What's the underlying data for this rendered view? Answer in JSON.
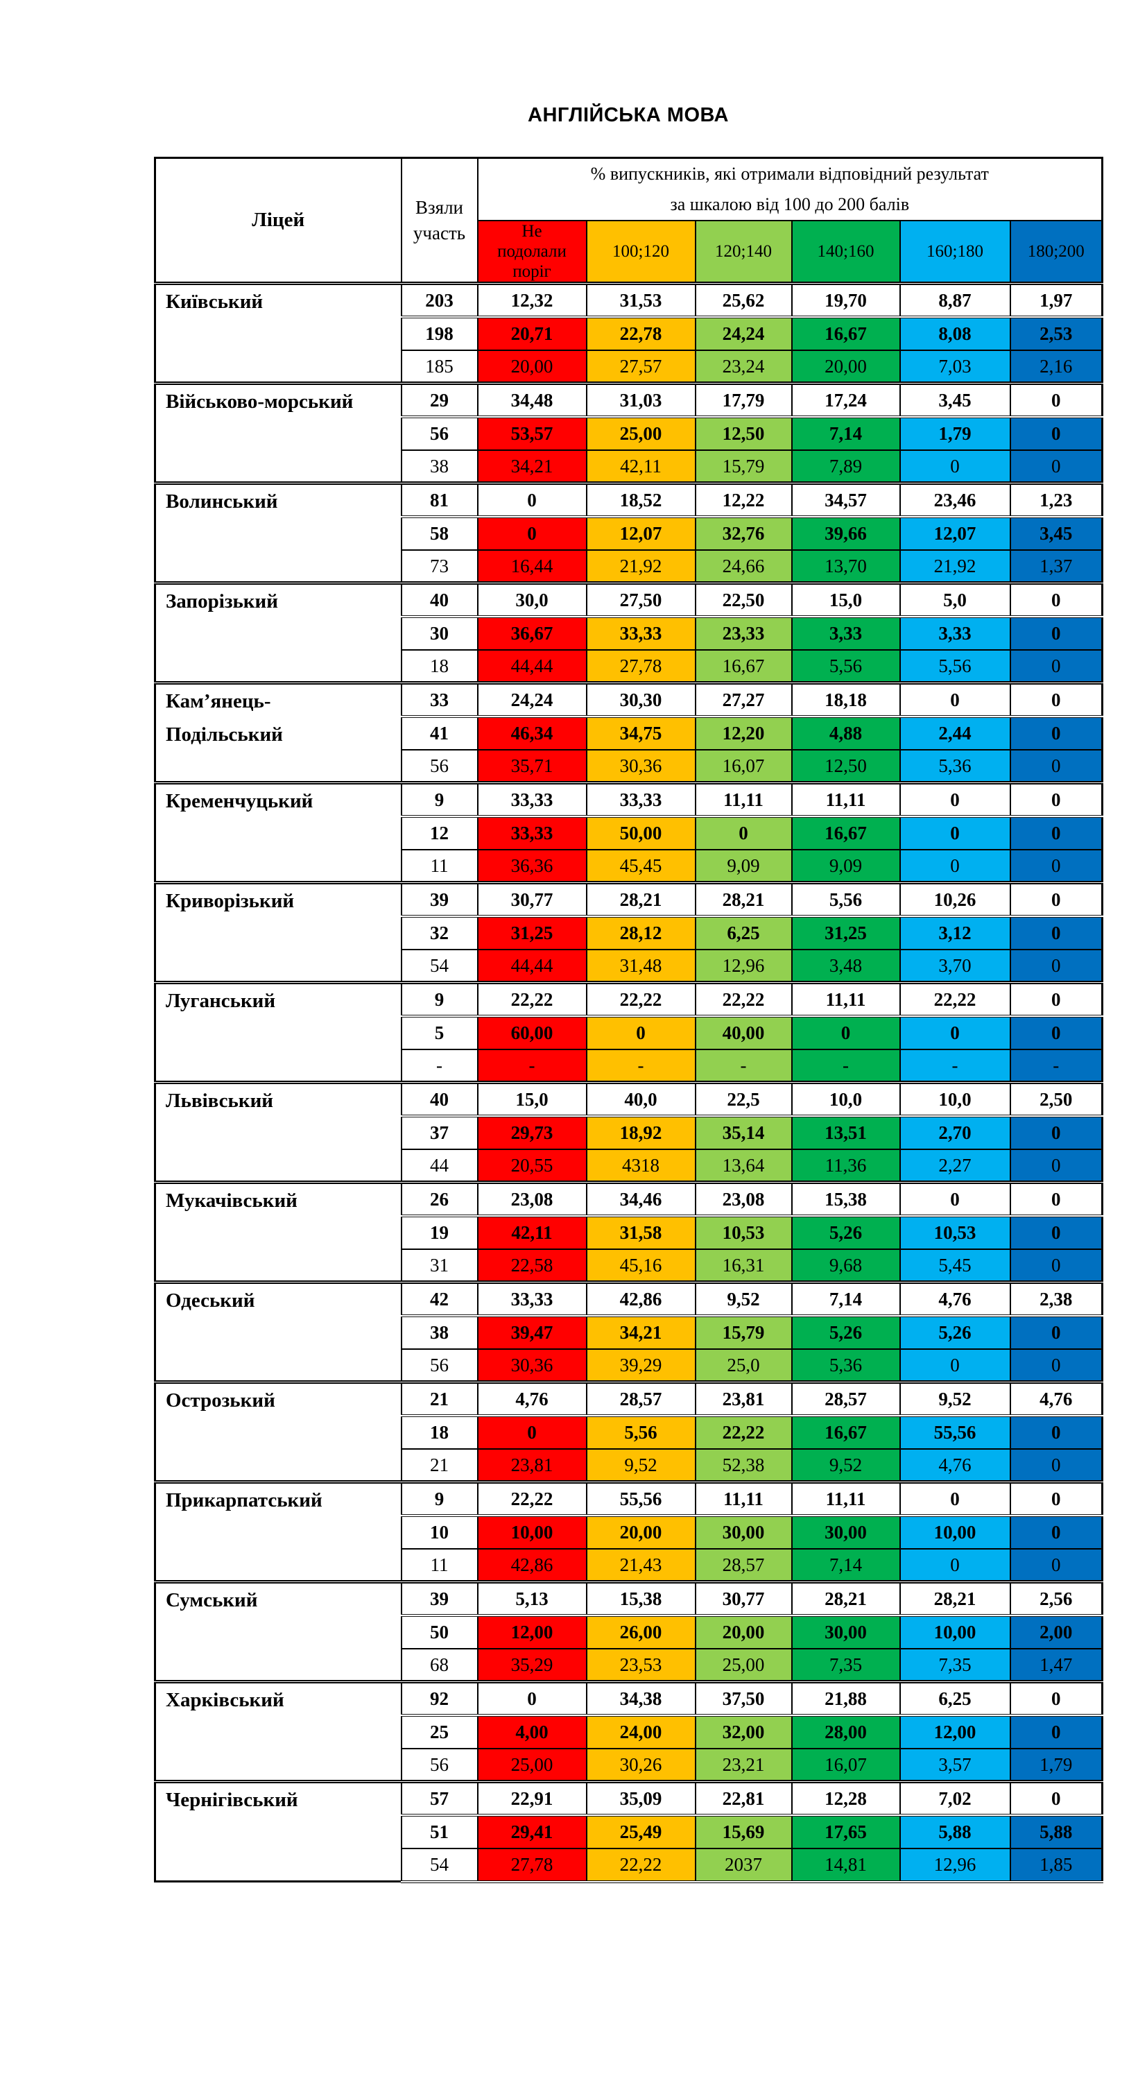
{
  "title": "АНГЛІЙСЬКА МОВА",
  "table": {
    "lyceum_header": "Ліцей",
    "participants_header": "Взяли\nучасть",
    "scale_header": "% випускників, які отримали відповідний результат\nза шкалою від 100 до 200 балів",
    "score_columns": [
      {
        "label": "Не\nподолали\nпоріг",
        "color": "#FF0000"
      },
      {
        "label": "100;120",
        "color": "#FFC000"
      },
      {
        "label": "120;140",
        "color": "#92D050"
      },
      {
        "label": "140;160",
        "color": "#00B050"
      },
      {
        "label": "160;180",
        "color": "#00B0F0"
      },
      {
        "label": "180;200",
        "color": "#0070C0"
      }
    ],
    "blocks": [
      {
        "lyceum": "Київський",
        "rows": [
          {
            "participants": "203",
            "values": [
              "12,32",
              "31,53",
              "25,62",
              "19,70",
              "8,87",
              "1,97"
            ]
          },
          {
            "participants": "198",
            "values": [
              "20,71",
              "22,78",
              "24,24",
              "16,67",
              "8,08",
              "2,53"
            ]
          },
          {
            "participants": "185",
            "values": [
              "20,00",
              "27,57",
              "23,24",
              "20,00",
              "7,03",
              "2,16"
            ]
          }
        ]
      },
      {
        "lyceum": "Військово-морський",
        "rows": [
          {
            "participants": "29",
            "values": [
              "34,48",
              "31,03",
              "17,79",
              "17,24",
              "3,45",
              "0"
            ]
          },
          {
            "participants": "56",
            "values": [
              "53,57",
              "25,00",
              "12,50",
              "7,14",
              "1,79",
              "0"
            ]
          },
          {
            "participants": "38",
            "values": [
              "34,21",
              "42,11",
              "15,79",
              "7,89",
              "0",
              "0"
            ]
          }
        ]
      },
      {
        "lyceum": "Волинський",
        "rows": [
          {
            "participants": "81",
            "values": [
              "0",
              "18,52",
              "12,22",
              "34,57",
              "23,46",
              "1,23"
            ]
          },
          {
            "participants": "58",
            "values": [
              "0",
              "12,07",
              "32,76",
              "39,66",
              "12,07",
              "3,45"
            ]
          },
          {
            "participants": "73",
            "values": [
              "16,44",
              "21,92",
              "24,66",
              "13,70",
              "21,92",
              "1,37"
            ]
          }
        ]
      },
      {
        "lyceum": "Запорізький",
        "rows": [
          {
            "participants": "40",
            "values": [
              "30,0",
              "27,50",
              "22,50",
              "15,0",
              "5,0",
              "0"
            ]
          },
          {
            "participants": "30",
            "values": [
              "36,67",
              "33,33",
              "23,33",
              "3,33",
              "3,33",
              "0"
            ]
          },
          {
            "participants": "18",
            "values": [
              "44,44",
              "27,78",
              "16,67",
              "5,56",
              "5,56",
              "0"
            ]
          }
        ]
      },
      {
        "lyceum": "Кам’янець-\nПодільський",
        "rows": [
          {
            "participants": "33",
            "values": [
              "24,24",
              "30,30",
              "27,27",
              "18,18",
              "0",
              "0"
            ]
          },
          {
            "participants": "41",
            "values": [
              "46,34",
              "34,75",
              "12,20",
              "4,88",
              "2,44",
              "0"
            ]
          },
          {
            "participants": "56",
            "values": [
              "35,71",
              "30,36",
              "16,07",
              "12,50",
              "5,36",
              "0"
            ]
          }
        ]
      },
      {
        "lyceum": "Кременчуцький",
        "rows": [
          {
            "participants": "9",
            "values": [
              "33,33",
              "33,33",
              "11,11",
              "11,11",
              "0",
              "0"
            ]
          },
          {
            "participants": "12",
            "values": [
              "33,33",
              "50,00",
              "0",
              "16,67",
              "0",
              "0"
            ]
          },
          {
            "participants": "11",
            "values": [
              "36,36",
              "45,45",
              "9,09",
              "9,09",
              "0",
              "0"
            ]
          }
        ]
      },
      {
        "lyceum": "Криворізький",
        "rows": [
          {
            "participants": "39",
            "values": [
              "30,77",
              "28,21",
              "28,21",
              "5,56",
              "10,26",
              "0"
            ]
          },
          {
            "participants": "32",
            "values": [
              "31,25",
              "28,12",
              "6,25",
              "31,25",
              "3,12",
              "0"
            ]
          },
          {
            "participants": "54",
            "values": [
              "44,44",
              "31,48",
              "12,96",
              "3,48",
              "3,70",
              "0"
            ]
          }
        ]
      },
      {
        "lyceum": "Луганський",
        "rows": [
          {
            "participants": "9",
            "values": [
              "22,22",
              "22,22",
              "22,22",
              "11,11",
              "22,22",
              "0"
            ]
          },
          {
            "participants": "5",
            "values": [
              "60,00",
              "0",
              "40,00",
              "0",
              "0",
              "0"
            ]
          },
          {
            "participants": "-",
            "values": [
              "-",
              "-",
              "-",
              "-",
              "-",
              "-"
            ]
          }
        ]
      },
      {
        "lyceum": "Львівський",
        "rows": [
          {
            "participants": "40",
            "values": [
              "15,0",
              "40,0",
              "22,5",
              "10,0",
              "10,0",
              "2,50"
            ]
          },
          {
            "participants": "37",
            "values": [
              "29,73",
              "18,92",
              "35,14",
              "13,51",
              "2,70",
              "0"
            ]
          },
          {
            "participants": "44",
            "values": [
              "20,55",
              "4318",
              "13,64",
              "11,36",
              "2,27",
              "0"
            ]
          }
        ]
      },
      {
        "lyceum": "Мукачівський",
        "rows": [
          {
            "participants": "26",
            "values": [
              "23,08",
              "34,46",
              "23,08",
              "15,38",
              "0",
              "0"
            ]
          },
          {
            "participants": "19",
            "values": [
              "42,11",
              "31,58",
              "10,53",
              "5,26",
              "10,53",
              "0"
            ]
          },
          {
            "participants": "31",
            "values": [
              "22,58",
              "45,16",
              "16,31",
              "9,68",
              "5,45",
              "0"
            ]
          }
        ]
      },
      {
        "lyceum": "Одеський",
        "rows": [
          {
            "participants": "42",
            "values": [
              "33,33",
              "42,86",
              "9,52",
              "7,14",
              "4,76",
              "2,38"
            ]
          },
          {
            "participants": "38",
            "values": [
              "39,47",
              "34,21",
              "15,79",
              "5,26",
              "5,26",
              "0"
            ]
          },
          {
            "participants": "56",
            "values": [
              "30,36",
              "39,29",
              "25,0",
              "5,36",
              "0",
              "0"
            ]
          }
        ]
      },
      {
        "lyceum": "Острозький",
        "rows": [
          {
            "participants": "21",
            "values": [
              "4,76",
              "28,57",
              "23,81",
              "28,57",
              "9,52",
              "4,76"
            ]
          },
          {
            "participants": "18",
            "values": [
              "0",
              "5,56",
              "22,22",
              "16,67",
              "55,56",
              "0"
            ]
          },
          {
            "participants": "21",
            "values": [
              "23,81",
              "9,52",
              "52,38",
              "9,52",
              "4,76",
              "0"
            ]
          }
        ]
      },
      {
        "lyceum": "Прикарпатський",
        "rows": [
          {
            "participants": "9",
            "values": [
              "22,22",
              "55,56",
              "11,11",
              "11,11",
              "0",
              "0"
            ]
          },
          {
            "participants": "10",
            "values": [
              "10,00",
              "20,00",
              "30,00",
              "30,00",
              "10,00",
              "0"
            ]
          },
          {
            "participants": "11",
            "values": [
              "42,86",
              "21,43",
              "28,57",
              "7,14",
              "0",
              "0"
            ]
          }
        ]
      },
      {
        "lyceum": "Сумський",
        "rows": [
          {
            "participants": "39",
            "values": [
              "5,13",
              "15,38",
              "30,77",
              "28,21",
              "28,21",
              "2,56"
            ]
          },
          {
            "participants": "50",
            "values": [
              "12,00",
              "26,00",
              "20,00",
              "30,00",
              "10,00",
              "2,00"
            ]
          },
          {
            "participants": "68",
            "values": [
              "35,29",
              "23,53",
              "25,00",
              "7,35",
              "7,35",
              "1,47"
            ]
          }
        ]
      },
      {
        "lyceum": "Харківський",
        "rows": [
          {
            "participants": "92",
            "values": [
              "0",
              "34,38",
              "37,50",
              "21,88",
              "6,25",
              "0"
            ]
          },
          {
            "participants": "25",
            "values": [
              "4,00",
              "24,00",
              "32,00",
              "28,00",
              "12,00",
              "0"
            ]
          },
          {
            "participants": "56",
            "values": [
              "25,00",
              "30,26",
              "23,21",
              "16,07",
              "3,57",
              "1,79"
            ]
          }
        ]
      },
      {
        "lyceum": "Чернігівський",
        "rows": [
          {
            "participants": "57",
            "values": [
              "22,91",
              "35,09",
              "22,81",
              "12,28",
              "7,02",
              "0"
            ]
          },
          {
            "participants": "51",
            "values": [
              "29,41",
              "25,49",
              "15,69",
              "17,65",
              "5,88",
              "5,88"
            ]
          },
          {
            "participants": "54",
            "values": [
              "27,78",
              "22,22",
              "2037",
              "14,81",
              "12,96",
              "1,85"
            ]
          }
        ]
      }
    ]
  }
}
